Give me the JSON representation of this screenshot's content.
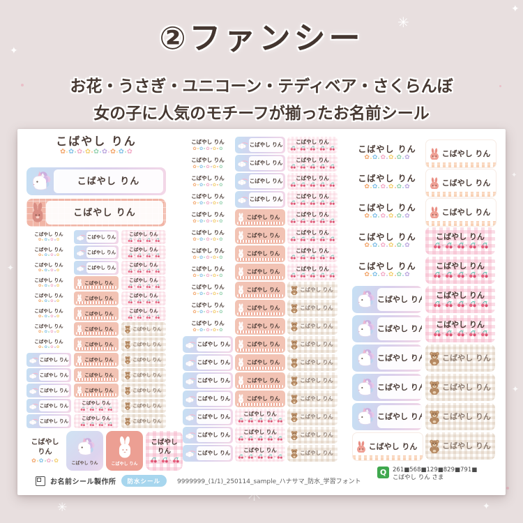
{
  "page": {
    "title": "②ファンシー",
    "subtitle1": "お花・うさぎ・ユニコーン・テディベア・さくらんぼ",
    "subtitle2": "女の子に人気のモチーフが揃ったお名前シール"
  },
  "sticker_name": "こばやし りん",
  "sticker_name_l1": "こばやし",
  "sticker_name_l2": "りん",
  "glyphs": {
    "flower": "✿",
    "sparkle8": "✳",
    "sparkle4": "✦"
  },
  "colors": {
    "page_bg": "#e8dfdf",
    "title_text": "#443630",
    "salmon": "#f2c3b4",
    "salmon_deep": "#ec9f93",
    "gradient_blue": "#c6e0f4",
    "gradient_lavender": "#d7cfec",
    "gradient_pink": "#f4d7e7",
    "cherry_red": "#e8627f",
    "cherry_stem": "#49b0a5",
    "teddy_brown": "#b68a63",
    "badge_blue": "#a7d6ee",
    "q_green": "#3fa84e",
    "flower_palette": [
      "#f2a469",
      "#82c0e6",
      "#f2a9c6",
      "#f3cf6e",
      "#94d1ae",
      "#bba6de"
    ]
  },
  "grids": {
    "left": {
      "size": "xs",
      "columns": [
        [
          [
            "flower",
            8
          ],
          [
            "rainbow",
            5
          ]
        ],
        [
          [
            "rainbow",
            3
          ],
          [
            "rabbit",
            8
          ],
          [
            "cherry",
            2
          ]
        ],
        [
          [
            "cherry",
            6
          ],
          [
            "teddy",
            7
          ]
        ]
      ]
    },
    "mid": {
      "size": "sm",
      "columns": [
        [
          [
            "flower",
            11
          ],
          [
            "rainbow",
            7
          ]
        ],
        [
          [
            "rainbow",
            4
          ],
          [
            "rabbit",
            11
          ],
          [
            "cherry",
            3
          ]
        ],
        [
          [
            "cherry",
            8
          ],
          [
            "teddy",
            10
          ]
        ]
      ]
    },
    "right": {
      "size": "lg",
      "columns": [
        [
          [
            "flower",
            5
          ],
          [
            "unicorn",
            5
          ],
          [
            "rabbitband",
            1
          ]
        ],
        [
          [
            "rabbitband",
            3
          ],
          [
            "cherrygingham",
            4
          ],
          [
            "teddy",
            4
          ]
        ]
      ]
    }
  },
  "squares": [
    "flower",
    "unicorn",
    "rabbit",
    "cherry"
  ],
  "footer": {
    "logo_text": "お名前シール製作所",
    "waterproof_badge": "防水シール",
    "file_label": "9999999_(1/1)_250114_sample_ハナサマ_防水_学習フォント",
    "q_mark": "Q",
    "code_line": "261■568■129■829■791■",
    "customer_line": "こばやし りん さま"
  }
}
